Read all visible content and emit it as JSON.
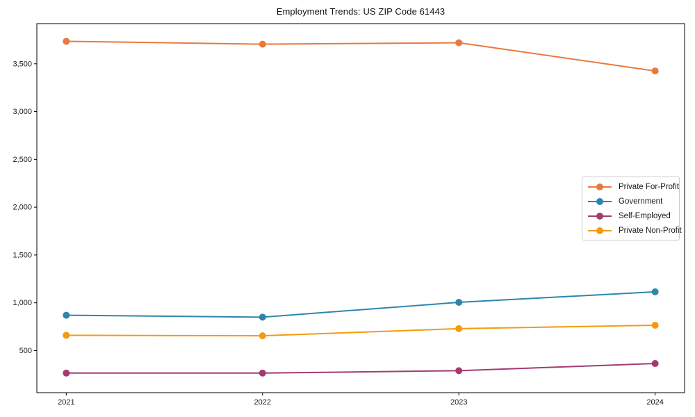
{
  "title": "Employment Trends: US ZIP Code 61443",
  "chart_data": {
    "type": "line",
    "title": "Employment Trends: US ZIP Code 61443",
    "xlabel": "",
    "ylabel": "",
    "categories": [
      "2021",
      "2022",
      "2023",
      "2024"
    ],
    "series": [
      {
        "name": "Private For-Profit",
        "color": "#E8793F",
        "values": [
          3735,
          3705,
          3720,
          3425
        ]
      },
      {
        "name": "Government",
        "color": "#2E86AB",
        "values": [
          870,
          850,
          1005,
          1115
        ]
      },
      {
        "name": "Self-Employed",
        "color": "#A23B72",
        "values": [
          265,
          265,
          290,
          365
        ]
      },
      {
        "name": "Private Non-Profit",
        "color": "#F49B0D",
        "values": [
          660,
          655,
          730,
          765
        ]
      }
    ],
    "ylim": [
      60,
      3920
    ],
    "yticks": [
      500,
      1000,
      1500,
      2000,
      2500,
      3000,
      3500
    ],
    "grid": false,
    "legend_position": "center right",
    "marker": "circle"
  }
}
